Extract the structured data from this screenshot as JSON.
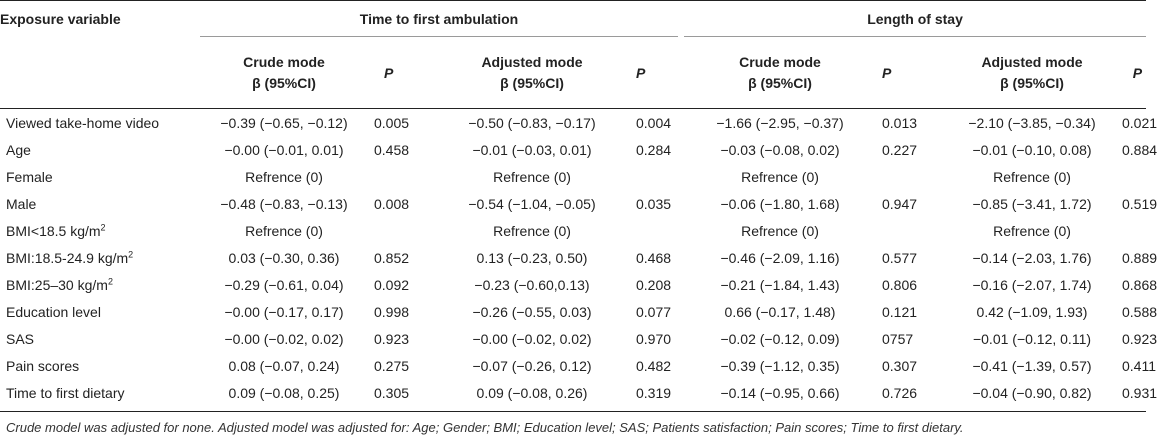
{
  "headers": {
    "exposure": "Exposure variable",
    "group1": "Time to first ambulation",
    "group2": "Length of stay",
    "crude_line1": "Crude mode",
    "crude_line2": "β (95%CI)",
    "adjusted_line1": "Adjusted mode",
    "adjusted_line2": "β (95%CI)",
    "p": "P"
  },
  "rows": [
    {
      "var": "Viewed take-home video",
      "sup": "",
      "c1": "−0.39 (−0.65, −0.12)",
      "p1": "0.005",
      "a1": "−0.50 (−0.83, −0.17)",
      "p2": "0.004",
      "c2": "−1.66 (−2.95, −0.37)",
      "p3": "0.013",
      "a2": "−2.10 (−3.85, −0.34)",
      "p4": "0.021"
    },
    {
      "var": "Age",
      "sup": "",
      "c1": "−0.00 (−0.01, 0.01)",
      "p1": "0.458",
      "a1": "−0.01 (−0.03, 0.01)",
      "p2": "0.284",
      "c2": "−0.03 (−0.08, 0.02)",
      "p3": "0.227",
      "a2": "−0.01 (−0.10, 0.08)",
      "p4": "0.884"
    },
    {
      "var": "Female",
      "sup": "",
      "c1": "Refrence (0)",
      "p1": "",
      "a1": "Refrence (0)",
      "p2": "",
      "c2": "Refrence (0)",
      "p3": "",
      "a2": "Refrence (0)",
      "p4": ""
    },
    {
      "var": "Male",
      "sup": "",
      "c1": "−0.48 (−0.83, −0.13)",
      "p1": "0.008",
      "a1": "−0.54 (−1.04, −0.05)",
      "p2": "0.035",
      "c2": "−0.06 (−1.80, 1.68)",
      "p3": "0.947",
      "a2": "−0.85 (−3.41, 1.72)",
      "p4": "0.519"
    },
    {
      "var": "BMI<18.5 kg/m",
      "sup": "2",
      "c1": "Refrence (0)",
      "p1": "",
      "a1": "Refrence (0)",
      "p2": "",
      "c2": "Refrence (0)",
      "p3": "",
      "a2": "Refrence (0)",
      "p4": ""
    },
    {
      "var": "BMI:18.5-24.9 kg/m",
      "sup": "2",
      "c1": "0.03 (−0.30, 0.36)",
      "p1": "0.852",
      "a1": "0.13 (−0.23, 0.50)",
      "p2": "0.468",
      "c2": "−0.46 (−2.09, 1.16)",
      "p3": "0.577",
      "a2": "−0.14 (−2.03, 1.76)",
      "p4": "0.889"
    },
    {
      "var": "BMI:25–30 kg/m",
      "sup": "2",
      "c1": "−0.29 (−0.61, 0.04)",
      "p1": "0.092",
      "a1": "−0.23 (−0.60,0.13)",
      "p2": "0.208",
      "c2": "−0.21 (−1.84, 1.43)",
      "p3": "0.806",
      "a2": "−0.16 (−2.07, 1.74)",
      "p4": "0.868"
    },
    {
      "var": "Education level",
      "sup": "",
      "c1": "−0.00 (−0.17, 0.17)",
      "p1": "0.998",
      "a1": "−0.26 (−0.55, 0.03)",
      "p2": "0.077",
      "c2": "0.66 (−0.17, 1.48)",
      "p3": "0.121",
      "a2": "0.42 (−1.09, 1.93)",
      "p4": "0.588"
    },
    {
      "var": "SAS",
      "sup": "",
      "c1": "−0.00 (−0.02, 0.02)",
      "p1": "0.923",
      "a1": "−0.00 (−0.02, 0.02)",
      "p2": "0.970",
      "c2": "−0.02 (−0.12, 0.09)",
      "p3": "0757",
      "a2": "−0.01 (−0.12, 0.11)",
      "p4": "0.923"
    },
    {
      "var": "Pain scores",
      "sup": "",
      "c1": "0.08 (−0.07, 0.24)",
      "p1": "0.275",
      "a1": "−0.07 (−0.26, 0.12)",
      "p2": "0.482",
      "c2": "−0.39 (−1.12, 0.35)",
      "p3": "0.307",
      "a2": "−0.41 (−1.39, 0.57)",
      "p4": "0.411"
    },
    {
      "var": "Time to first dietary",
      "sup": "",
      "c1": "0.09 (−0.08, 0.25)",
      "p1": "0.305",
      "a1": "0.09 (−0.08, 0.26)",
      "p2": "0.319",
      "c2": "−0.14 (−0.95, 0.66)",
      "p3": "0.726",
      "a2": "−0.04 (−0.90, 0.82)",
      "p4": "0.931"
    }
  ],
  "footnote": "Crude model was adjusted for none. Adjusted model was adjusted for: Age; Gender; BMI; Education level; SAS; Patients satisfaction; Pain scores; Time to first dietary."
}
